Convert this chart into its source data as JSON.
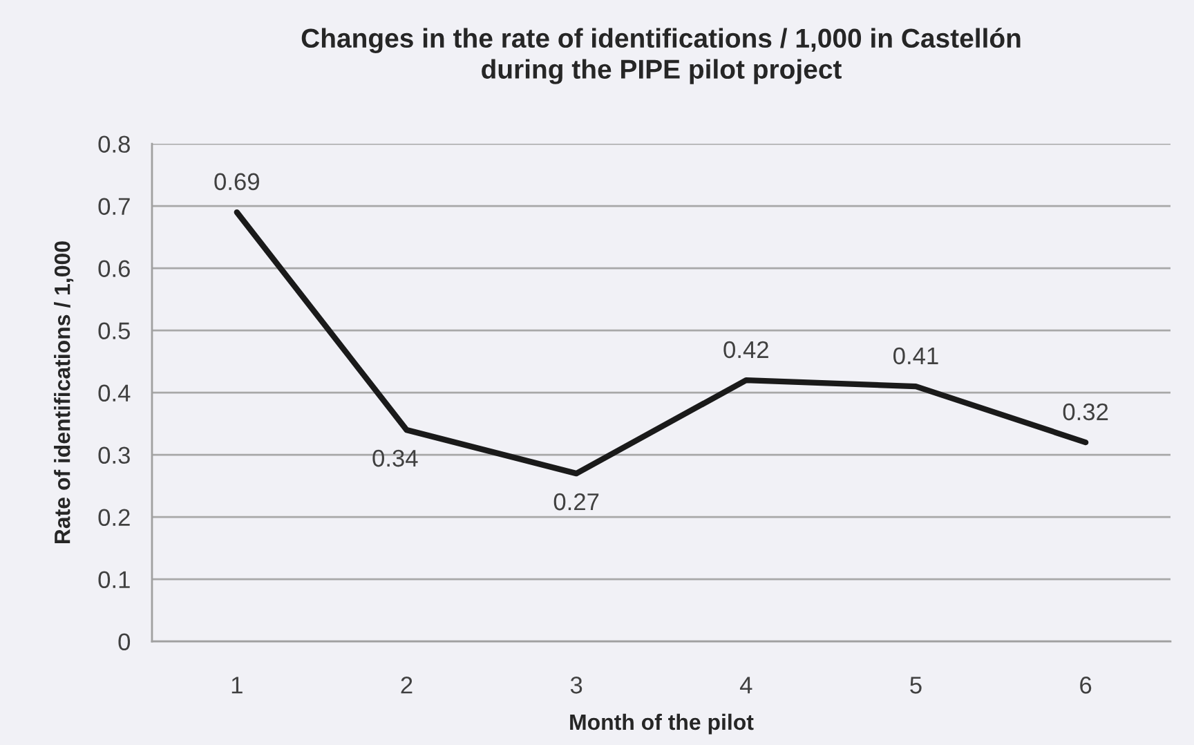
{
  "chart_data": {
    "type": "line",
    "title": "Changes in the rate of identifications / 1,000 in Castellón\nduring the PIPE pilot project",
    "xlabel": "Month of the pilot",
    "ylabel": "Rate of identifications / 1,000",
    "categories": [
      "1",
      "2",
      "3",
      "4",
      "5",
      "6"
    ],
    "series": [
      {
        "color": "#1a1a1a",
        "values": [
          0.69,
          0.34,
          0.27,
          0.42,
          0.41,
          0.32
        ]
      }
    ],
    "ylim": [
      0,
      0.8
    ],
    "yticks": [
      0,
      0.1,
      0.2,
      0.3,
      0.4,
      0.5,
      0.6,
      0.7,
      0.8
    ],
    "grid": "y",
    "data_labels": true,
    "marker": "none",
    "line_style": "solid"
  }
}
